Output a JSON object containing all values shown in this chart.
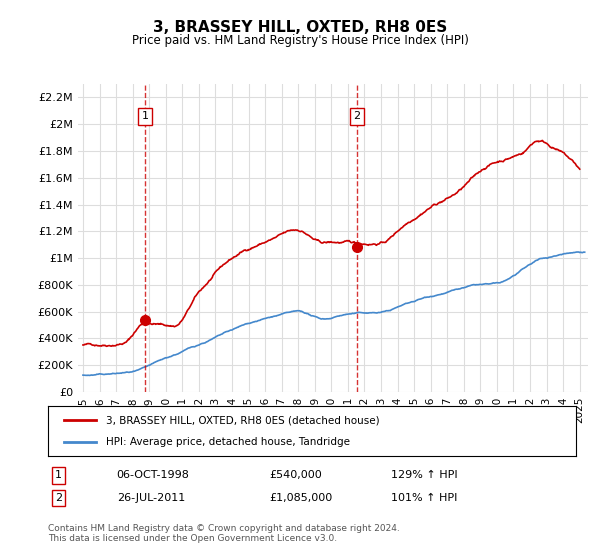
{
  "title": "3, BRASSEY HILL, OXTED, RH8 0ES",
  "subtitle": "Price paid vs. HM Land Registry's House Price Index (HPI)",
  "ylabel": "",
  "xlim_start": 1995.0,
  "xlim_end": 2025.5,
  "ylim_min": 0,
  "ylim_max": 2300000,
  "yticks": [
    0,
    200000,
    400000,
    600000,
    800000,
    1000000,
    1200000,
    1400000,
    1600000,
    1800000,
    2000000,
    2200000
  ],
  "ytick_labels": [
    "£0",
    "£200K",
    "£400K",
    "£600K",
    "£800K",
    "£1M",
    "£1.2M",
    "£1.4M",
    "£1.6M",
    "£1.8M",
    "£2M",
    "£2.2M"
  ],
  "sale1_date": 1998.76,
  "sale1_price": 540000,
  "sale1_label": "1",
  "sale1_text": "06-OCT-1998    £540,000    129% ↑ HPI",
  "sale2_date": 2011.56,
  "sale2_price": 1085000,
  "sale2_label": "2",
  "sale2_text": "26-JUL-2011    £1,085,000    101% ↑ HPI",
  "line_color_red": "#cc0000",
  "line_color_blue": "#4488cc",
  "vline_color": "#cc0000",
  "background_color": "#ffffff",
  "grid_color": "#dddddd",
  "legend_label_red": "3, BRASSEY HILL, OXTED, RH8 0ES (detached house)",
  "legend_label_blue": "HPI: Average price, detached house, Tandridge",
  "footnote": "Contains HM Land Registry data © Crown copyright and database right 2024.\nThis data is licensed under the Open Government Licence v3.0.",
  "xtick_years": [
    1995,
    1996,
    1997,
    1998,
    1999,
    2000,
    2001,
    2002,
    2003,
    2004,
    2005,
    2006,
    2007,
    2008,
    2009,
    2010,
    2011,
    2012,
    2013,
    2014,
    2015,
    2016,
    2017,
    2018,
    2019,
    2020,
    2021,
    2022,
    2023,
    2024,
    2025
  ]
}
